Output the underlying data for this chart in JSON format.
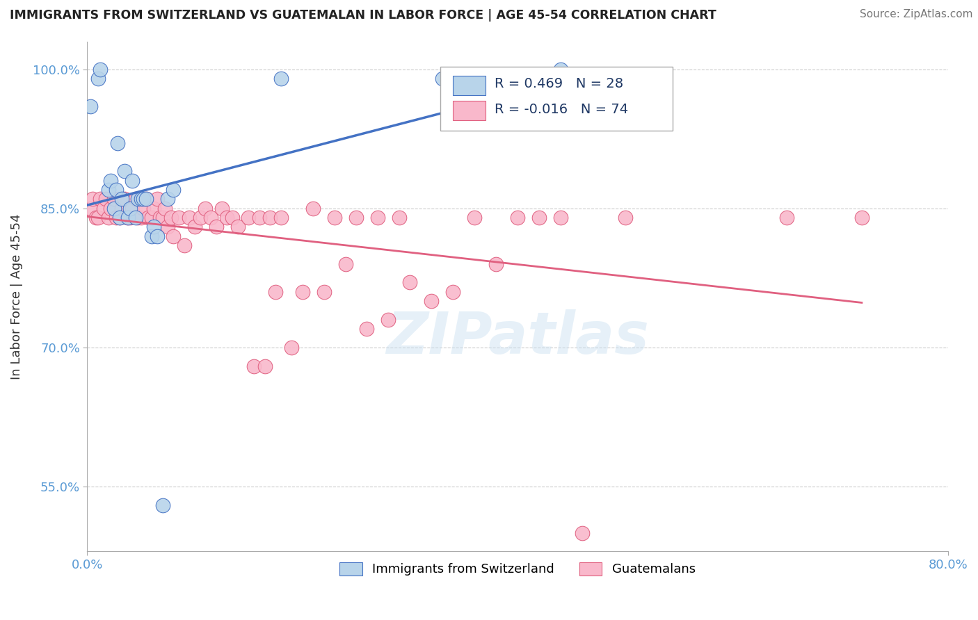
{
  "title": "IMMIGRANTS FROM SWITZERLAND VS GUATEMALAN IN LABOR FORCE | AGE 45-54 CORRELATION CHART",
  "source": "Source: ZipAtlas.com",
  "ylabel": "In Labor Force | Age 45-54",
  "xlim": [
    0.0,
    0.8
  ],
  "ylim": [
    0.48,
    1.03
  ],
  "legend1_label": "Immigrants from Switzerland",
  "legend2_label": "Guatemalans",
  "R_swiss": 0.469,
  "N_swiss": 28,
  "R_guatemalan": -0.016,
  "N_guatemalan": 74,
  "swiss_color": "#b8d4ea",
  "guatemalan_color": "#f9b8cb",
  "swiss_line_color": "#4472c4",
  "guatemalan_line_color": "#e06080",
  "background_color": "#ffffff",
  "swiss_x": [
    0.003,
    0.01,
    0.012,
    0.02,
    0.022,
    0.025,
    0.027,
    0.028,
    0.03,
    0.032,
    0.035,
    0.038,
    0.04,
    0.042,
    0.045,
    0.047,
    0.05,
    0.052,
    0.055,
    0.06,
    0.062,
    0.065,
    0.07,
    0.075,
    0.08,
    0.18,
    0.33,
    0.44
  ],
  "swiss_y": [
    0.96,
    0.99,
    1.0,
    0.87,
    0.88,
    0.85,
    0.87,
    0.92,
    0.84,
    0.86,
    0.89,
    0.84,
    0.85,
    0.88,
    0.84,
    0.86,
    0.86,
    0.86,
    0.86,
    0.82,
    0.83,
    0.82,
    0.53,
    0.86,
    0.87,
    0.99,
    0.99,
    1.0
  ],
  "guatemalan_x": [
    0.003,
    0.005,
    0.008,
    0.01,
    0.012,
    0.015,
    0.017,
    0.02,
    0.022,
    0.025,
    0.027,
    0.03,
    0.032,
    0.035,
    0.037,
    0.04,
    0.042,
    0.045,
    0.047,
    0.05,
    0.052,
    0.055,
    0.057,
    0.06,
    0.062,
    0.065,
    0.068,
    0.07,
    0.072,
    0.075,
    0.078,
    0.08,
    0.085,
    0.09,
    0.095,
    0.1,
    0.105,
    0.11,
    0.115,
    0.12,
    0.125,
    0.13,
    0.135,
    0.14,
    0.15,
    0.155,
    0.16,
    0.165,
    0.17,
    0.175,
    0.18,
    0.19,
    0.2,
    0.21,
    0.22,
    0.23,
    0.24,
    0.25,
    0.26,
    0.27,
    0.28,
    0.29,
    0.3,
    0.32,
    0.34,
    0.36,
    0.38,
    0.4,
    0.42,
    0.44,
    0.46,
    0.5,
    0.65,
    0.72
  ],
  "guatemalan_y": [
    0.85,
    0.86,
    0.84,
    0.84,
    0.86,
    0.85,
    0.86,
    0.84,
    0.85,
    0.86,
    0.84,
    0.84,
    0.85,
    0.86,
    0.84,
    0.84,
    0.85,
    0.86,
    0.84,
    0.84,
    0.85,
    0.86,
    0.84,
    0.84,
    0.85,
    0.86,
    0.84,
    0.84,
    0.85,
    0.83,
    0.84,
    0.82,
    0.84,
    0.81,
    0.84,
    0.83,
    0.84,
    0.85,
    0.84,
    0.83,
    0.85,
    0.84,
    0.84,
    0.83,
    0.84,
    0.68,
    0.84,
    0.68,
    0.84,
    0.76,
    0.84,
    0.7,
    0.76,
    0.85,
    0.76,
    0.84,
    0.79,
    0.84,
    0.72,
    0.84,
    0.73,
    0.84,
    0.77,
    0.75,
    0.76,
    0.84,
    0.79,
    0.84,
    0.84,
    0.84,
    0.5,
    0.84,
    0.84,
    0.84
  ]
}
